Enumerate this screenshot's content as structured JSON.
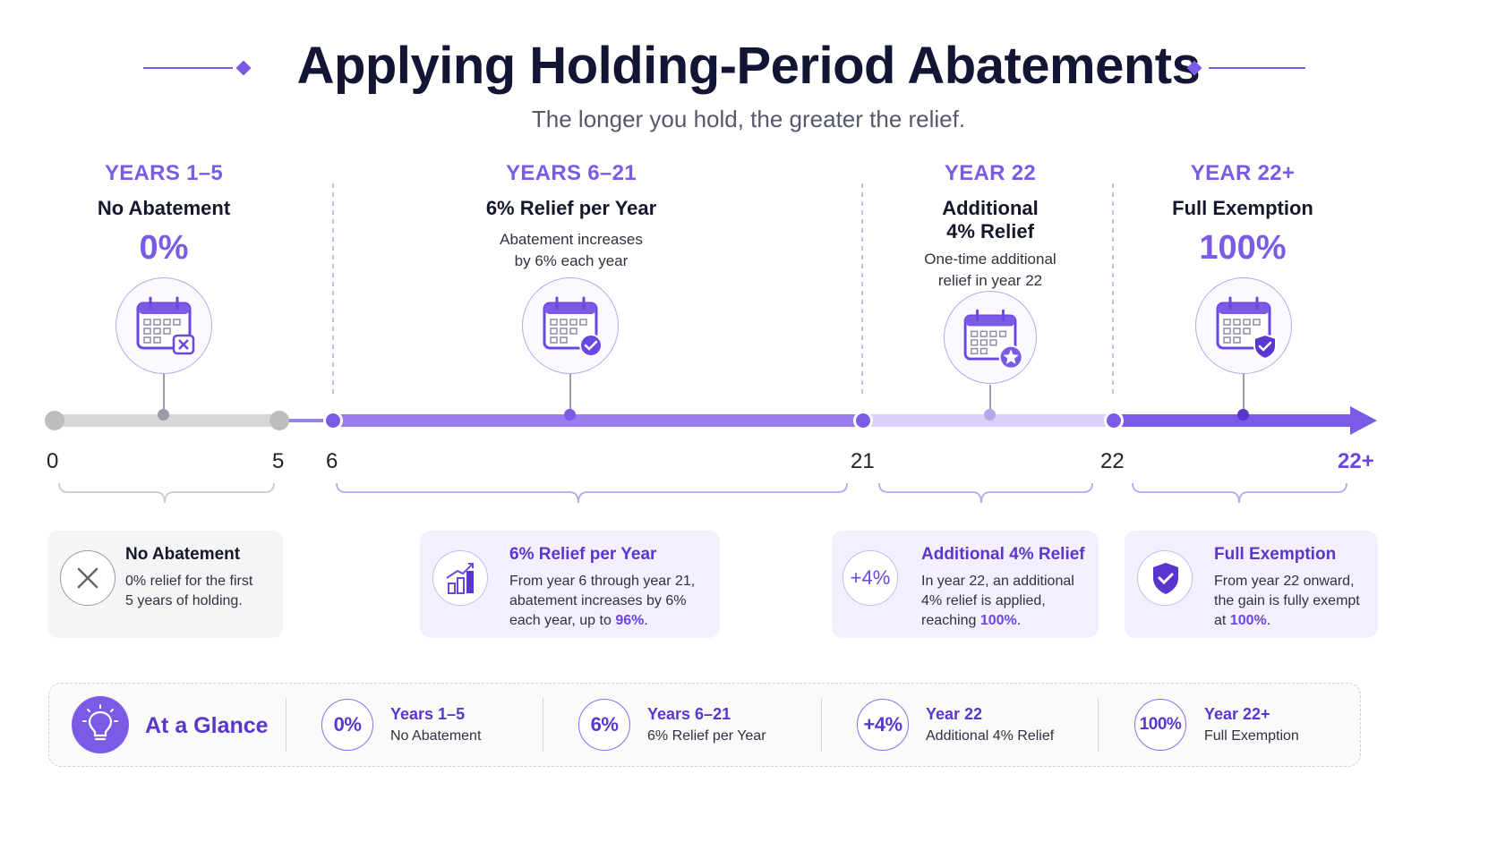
{
  "header": {
    "title": "Applying Holding-Period Abatements",
    "subtitle": "The longer you hold, the greater the relief."
  },
  "phases": [
    {
      "years": "YEARS 1–5",
      "title": "No Abatement",
      "pct": "0%",
      "desc": "",
      "icon": "calendar-x-icon"
    },
    {
      "years": "YEARS 6–21",
      "title": "6% Relief per Year",
      "pct": "",
      "desc_line1": "Abatement increases",
      "desc_line2": "by 6% each year",
      "icon": "calendar-check-icon"
    },
    {
      "years": "YEAR 22",
      "title_line1": "Additional",
      "title_line2": "4% Relief",
      "desc_line1": "One-time additional",
      "desc_line2": "relief in year 22",
      "icon": "calendar-star-icon"
    },
    {
      "years": "YEAR 22+",
      "title": "Full Exemption",
      "pct": "100%",
      "icon": "calendar-shield-icon"
    }
  ],
  "timeline": {
    "ticks": [
      "0",
      "5",
      "6",
      "21",
      "22",
      "22+"
    ]
  },
  "cards": [
    {
      "title": "No Abatement",
      "line1": "0% relief for the first",
      "line2": "5 years of holding.",
      "icon": "x-circle-icon"
    },
    {
      "title": "6% Relief per Year",
      "line1": "From year 6 through year 21,",
      "line2": "abatement increases by 6%",
      "line3_pre": "each year, up to ",
      "line3_bold": "96%",
      "line3_post": ".",
      "icon": "growth-chart-icon"
    },
    {
      "title": "Additional 4% Relief",
      "icon_text": "+4%",
      "line1": "In year 22, an additional",
      "line2": "4% relief is applied,",
      "line3_pre": "reaching ",
      "line3_bold": "100%",
      "line3_post": ".",
      "icon": "plus-four-icon"
    },
    {
      "title": "Full Exemption",
      "line1": "From year 22 onward,",
      "line2": "the gain is fully exempt",
      "line3_pre": "at ",
      "line3_bold": "100%",
      "line3_post": ".",
      "icon": "shield-check-icon"
    }
  ],
  "glance": {
    "title": "At a Glance",
    "icon": "lightbulb-icon",
    "items": [
      {
        "badge": "0%",
        "label": "Years 1–5",
        "desc": "No Abatement"
      },
      {
        "badge": "6%",
        "label": "Years 6–21",
        "desc": "6% Relief per Year"
      },
      {
        "badge": "+4%",
        "label": "Year 22",
        "desc": "Additional 4% Relief"
      },
      {
        "badge": "100%",
        "label": "Year 22+",
        "desc": "Full Exemption"
      }
    ]
  },
  "colors": {
    "accent": "#7b5be6",
    "accent_dark": "#5a36cf",
    "grey_track": "#d7d7d7",
    "light_purple": "#d9ccf7",
    "card_purple": "#f3effd",
    "card_grey": "#f5f5f7"
  }
}
